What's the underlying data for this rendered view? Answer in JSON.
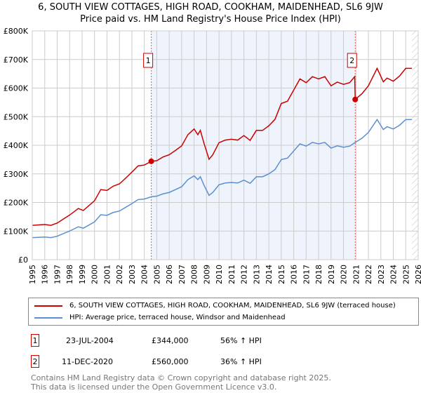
{
  "title": "6, SOUTH VIEW COTTAGES, HIGH ROAD, COOKHAM, MAIDENHEAD, SL6 9JW",
  "subtitle": "Price paid vs. HM Land Registry's House Price Index (HPI)",
  "chart_data": {
    "type": "line",
    "xlim": [
      1995,
      2026
    ],
    "ylim": [
      0,
      800000
    ],
    "x_ticks": [
      "1995",
      "1996",
      "1997",
      "1998",
      "1999",
      "2000",
      "2001",
      "2002",
      "2003",
      "2004",
      "2005",
      "2006",
      "2007",
      "2008",
      "2009",
      "2010",
      "2011",
      "2012",
      "2013",
      "2014",
      "2015",
      "2016",
      "2017",
      "2018",
      "2019",
      "2020",
      "2021",
      "2022",
      "2023",
      "2024",
      "2025",
      "2026"
    ],
    "y_ticks": [
      {
        "v": 0,
        "label": "£0"
      },
      {
        "v": 100000,
        "label": "£100K"
      },
      {
        "v": 200000,
        "label": "£200K"
      },
      {
        "v": 300000,
        "label": "£300K"
      },
      {
        "v": 400000,
        "label": "£400K"
      },
      {
        "v": 500000,
        "label": "£500K"
      },
      {
        "v": 600000,
        "label": "£600K"
      },
      {
        "v": 700000,
        "label": "£700K"
      },
      {
        "v": 800000,
        "label": "£800K"
      }
    ],
    "grid": true,
    "shaded_range": [
      2004.56,
      2020.94
    ],
    "hatched_from": 2025.5,
    "series": [
      {
        "name": "6, SOUTH VIEW COTTAGES, HIGH ROAD, COOKHAM, MAIDENHEAD, SL6 9JW (terraced house)",
        "color": "#cc0000",
        "x": [
          1995,
          1996,
          1996.5,
          1997,
          1998,
          1998.7,
          1999.1,
          2000,
          2000.5,
          2001,
          2001.5,
          2002,
          2002.5,
          2003,
          2003.5,
          2004,
          2004.56,
          2005,
          2005.5,
          2006,
          2006.5,
          2007,
          2007.5,
          2008,
          2008.3,
          2008.5,
          2008.8,
          2009.2,
          2009.5,
          2010,
          2010.5,
          2011,
          2011.5,
          2012,
          2012.5,
          2013,
          2013.5,
          2014,
          2014.5,
          2015,
          2015.5,
          2016,
          2016.5,
          2017,
          2017.5,
          2018,
          2018.5,
          2019,
          2019.5,
          2020,
          2020.5,
          2020.9,
          2020.94,
          2021.5,
          2022,
          2022.7,
          2023.2,
          2023.5,
          2024,
          2024.5,
          2025,
          2025.5
        ],
        "y": [
          120,
          123,
          120,
          128,
          156,
          179,
          172,
          206,
          245,
          242,
          257,
          265,
          285,
          306,
          328,
          331,
          344,
          346,
          359,
          367,
          382,
          398,
          437,
          457,
          437,
          452,
          406,
          351,
          367,
          409,
          418,
          421,
          418,
          434,
          417,
          452,
          452,
          468,
          491,
          546,
          554,
          593,
          632,
          619,
          640,
          632,
          640,
          608,
          621,
          613,
          619,
          640,
          560,
          581,
          608,
          669,
          622,
          635,
          624,
          642,
          669,
          669
        ],
        "unit": "£K"
      },
      {
        "name": "HPI: Average price, terraced house, Windsor and Maidenhead",
        "color": "#5b8fd0",
        "x": [
          1995,
          1996,
          1996.5,
          1997,
          1998,
          1998.7,
          1999.1,
          2000,
          2000.5,
          2001,
          2001.5,
          2002,
          2002.5,
          2003,
          2003.5,
          2004,
          2004.56,
          2005,
          2005.5,
          2006,
          2006.5,
          2007,
          2007.5,
          2008,
          2008.3,
          2008.5,
          2008.8,
          2009.2,
          2009.5,
          2010,
          2010.5,
          2011,
          2011.5,
          2012,
          2012.5,
          2013,
          2013.5,
          2014,
          2014.5,
          2015,
          2015.5,
          2016,
          2016.5,
          2017,
          2017.5,
          2018,
          2018.5,
          2019,
          2019.5,
          2020,
          2020.5,
          2020.94,
          2021.5,
          2022,
          2022.7,
          2023.2,
          2023.5,
          2024,
          2024.5,
          2025,
          2025.5
        ],
        "y": [
          77,
          79,
          77,
          82,
          100,
          115,
          110,
          132,
          157,
          155,
          165,
          170,
          183,
          196,
          210,
          212,
          220,
          222,
          230,
          235,
          245,
          255,
          280,
          293,
          280,
          290,
          260,
          225,
          235,
          262,
          268,
          270,
          268,
          278,
          267,
          290,
          290,
          300,
          315,
          350,
          355,
          380,
          405,
          397,
          410,
          405,
          410,
          390,
          398,
          393,
          397,
          410,
          425,
          445,
          490,
          455,
          465,
          457,
          470,
          490,
          490
        ],
        "unit": "£K"
      }
    ],
    "markers": [
      {
        "label": "1",
        "x": 2004.56,
        "y": 344
      },
      {
        "label": "2",
        "x": 2020.94,
        "y": 560
      }
    ]
  },
  "legend": [
    "6, SOUTH VIEW COTTAGES, HIGH ROAD, COOKHAM, MAIDENHEAD, SL6 9JW (terraced house)",
    "HPI: Average price, terraced house, Windsor and Maidenhead"
  ],
  "sales": [
    {
      "num": "1",
      "date": "23-JUL-2004",
      "price": "£344,000",
      "hpi": "56% ↑ HPI"
    },
    {
      "num": "2",
      "date": "11-DEC-2020",
      "price": "£560,000",
      "hpi": "36% ↑ HPI"
    }
  ],
  "footer": [
    "Contains HM Land Registry data © Crown copyright and database right 2025.",
    "This data is licensed under the Open Government Licence v3.0."
  ]
}
